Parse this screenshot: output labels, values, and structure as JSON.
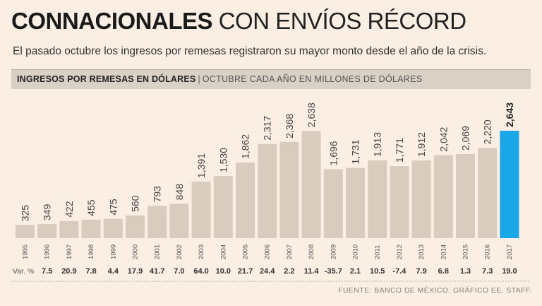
{
  "header": {
    "title_bold": "CONNACIONALES",
    "title_light": "CON ENVÍOS RÉCORD",
    "subtitle": "El pasado octubre los ingresos por remesas registraron su mayor monto desde el año de la crisis."
  },
  "band": {
    "label_bold": "INGRESOS POR REMESAS EN DÓLARES",
    "separator": "|",
    "label_light": "OCTUBRE CADA AÑO EN MILLONES DE DÓLARES"
  },
  "chart_data": {
    "type": "bar",
    "title": "INGRESOS POR REMESAS EN DÓLARES",
    "subtitle": "OCTUBRE CADA AÑO EN MILLONES DE DÓLARES",
    "categories": [
      "1995",
      "1996",
      "1997",
      "1998",
      "1999",
      "2000",
      "2001",
      "2002",
      "2003",
      "2004",
      "2005",
      "2006",
      "2007",
      "2008",
      "2009",
      "2010",
      "2011",
      "2012",
      "2013",
      "2014",
      "2015",
      "2016",
      "2017"
    ],
    "values": [
      325,
      349,
      422,
      455,
      475,
      560,
      793,
      848,
      1391,
      1530,
      1862,
      2317,
      2368,
      2638,
      1696,
      1731,
      1913,
      1771,
      1912,
      2042,
      2069,
      2220,
      2643
    ],
    "value_labels": [
      "325",
      "349",
      "422",
      "455",
      "475",
      "560",
      "793",
      "848",
      "1,391",
      "1,530",
      "1,862",
      "2,317",
      "2,368",
      "2,638",
      "1,696",
      "1,731",
      "1,913",
      "1,771",
      "1,912",
      "2,042",
      "2,069",
      "2,220",
      "2,643"
    ],
    "var_label": "Var. %",
    "var_values": [
      "",
      "7.5",
      "20.9",
      "7.8",
      "4.4",
      "17.9",
      "41.7",
      "7.0",
      "64.0",
      "10.0",
      "21.7",
      "24.4",
      "2.2",
      "11.4",
      "-35.7",
      "2.1",
      "10.5",
      "-7.4",
      "7.9",
      "6.8",
      "1.3",
      "7.3",
      "19.0"
    ],
    "highlight_index": 22,
    "ylim": [
      0,
      2643
    ],
    "colors": {
      "bar": "#d9ccbf",
      "highlight": "#1aa7e8",
      "text": "#444444"
    }
  },
  "footer": {
    "source": "FUENTE: BANCO DE MÉXICO. GRÁFICO EE. STAFF."
  }
}
